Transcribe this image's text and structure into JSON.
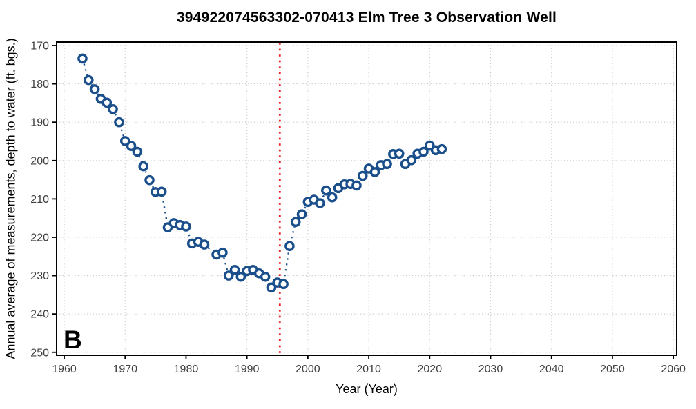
{
  "figure": {
    "title": "394922074563302-070413 Elm Tree 3 Observation Well",
    "panel_label": "B"
  },
  "chart_data": {
    "type": "scatter",
    "title": "394922074563302-070413 Elm Tree 3 Observation Well",
    "xlabel": "Year (Year)",
    "ylabel": "Annual average of measurements, depth to water (ft. bgs.)",
    "x_axis": {
      "min": 1958.75,
      "max": 2060.55,
      "ticks": [
        1960,
        1970,
        1980,
        1990,
        2000,
        2010,
        2020,
        2030,
        2040,
        2050,
        2060
      ]
    },
    "y_axis": {
      "min": 169.1,
      "max": 250.76,
      "ticks": [
        170,
        180,
        190,
        200,
        210,
        220,
        230,
        240,
        250
      ],
      "inverted": true,
      "unit": "ft. bgs."
    },
    "grid": "dotted-major",
    "legend_position": "none",
    "series": [
      {
        "name": "annual-average-depth-to-water",
        "marker": "open-circle",
        "color": "#1a4f8c",
        "connector": "dotted-line",
        "points": [
          [
            1963,
            173.4
          ],
          [
            1964,
            179.0
          ],
          [
            1965,
            181.4
          ],
          [
            1966,
            183.9
          ],
          [
            1967,
            184.9
          ],
          [
            1968,
            186.6
          ],
          [
            1969,
            190.0
          ],
          [
            1970,
            194.9
          ],
          [
            1971,
            196.2
          ],
          [
            1972,
            197.7
          ],
          [
            1973,
            201.5
          ],
          [
            1974,
            205.1
          ],
          [
            1975,
            208.2
          ],
          [
            1976,
            208.1
          ],
          [
            1977,
            217.4
          ],
          [
            1978,
            216.3
          ],
          [
            1979,
            216.8
          ],
          [
            1980,
            217.2
          ],
          [
            1981,
            221.6
          ],
          [
            1982,
            221.2
          ],
          [
            1983,
            221.9
          ],
          [
            1985,
            224.5
          ],
          [
            1986,
            224.0
          ],
          [
            1987,
            230.0
          ],
          [
            1988,
            228.5
          ],
          [
            1989,
            230.3
          ],
          [
            1990,
            228.8
          ],
          [
            1991,
            228.5
          ],
          [
            1992,
            229.4
          ],
          [
            1993,
            230.3
          ],
          [
            1994,
            233.1
          ],
          [
            1995,
            231.8
          ],
          [
            1996,
            232.2
          ],
          [
            1997,
            222.3
          ],
          [
            1998,
            216.0
          ],
          [
            1999,
            214.0
          ],
          [
            2000,
            210.8
          ],
          [
            2001,
            210.2
          ],
          [
            2002,
            211.1
          ],
          [
            2003,
            207.8
          ],
          [
            2004,
            209.6
          ],
          [
            2005,
            207.2
          ],
          [
            2006,
            206.2
          ],
          [
            2007,
            206.1
          ],
          [
            2008,
            206.5
          ],
          [
            2009,
            204.0
          ],
          [
            2010,
            202.1
          ],
          [
            2011,
            203.0
          ],
          [
            2012,
            201.2
          ],
          [
            2013,
            200.9
          ],
          [
            2014,
            198.3
          ],
          [
            2015,
            198.2
          ],
          [
            2016,
            200.9
          ],
          [
            2017,
            199.9
          ],
          [
            2018,
            198.2
          ],
          [
            2019,
            197.7
          ],
          [
            2020,
            196.1
          ],
          [
            2021,
            197.3
          ],
          [
            2022,
            197.0
          ]
        ]
      }
    ],
    "reference_line": {
      "orientation": "vertical",
      "x": 1995.4,
      "color": "#ec1f24",
      "style": "dotted"
    },
    "colors": {
      "marker": "#1a4f8c",
      "marker_fill": "#ffffff",
      "reference": "#ec1f24",
      "grid": "#c6c6c6",
      "axis_text": "#404040",
      "panel_border": "#000000",
      "background": "#ffffff"
    }
  }
}
